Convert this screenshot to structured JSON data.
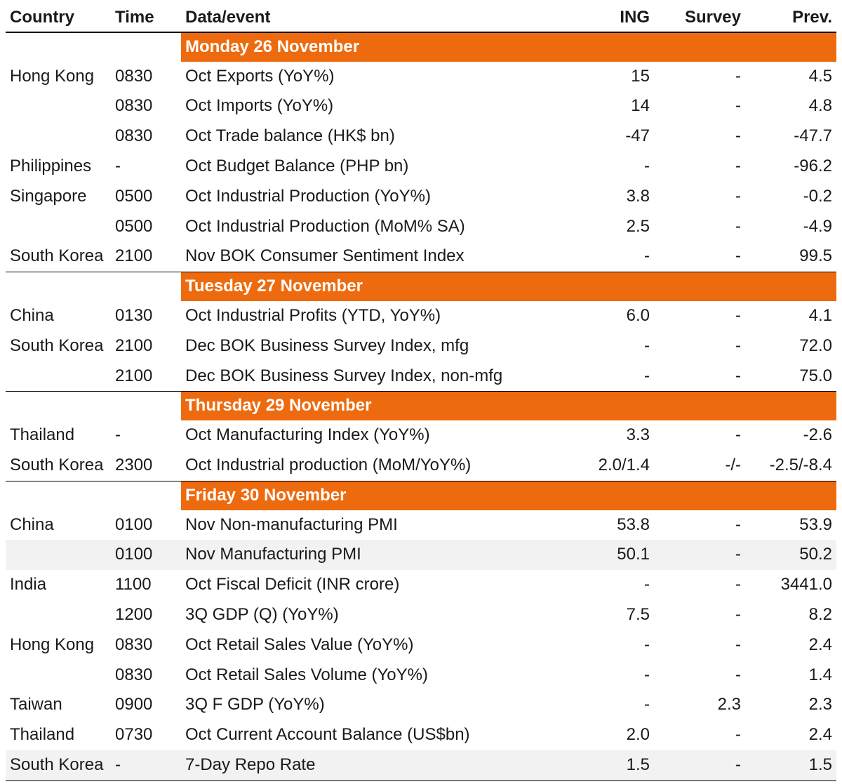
{
  "table": {
    "type": "table",
    "colors": {
      "header_bg": "#ed6b0e",
      "header_text": "#ffffff",
      "row_shade": "#f2f2f2",
      "border": "#000000",
      "text": "#1a1a1a",
      "background": "#ffffff"
    },
    "typography": {
      "fontsize_pt": 18,
      "header_weight": 700,
      "body_weight": 400
    },
    "columns": [
      {
        "key": "country",
        "label": "Country",
        "align": "left"
      },
      {
        "key": "time",
        "label": "Time",
        "align": "left"
      },
      {
        "key": "event",
        "label": "Data/event",
        "align": "left"
      },
      {
        "key": "ing",
        "label": "ING",
        "align": "right"
      },
      {
        "key": "survey",
        "label": "Survey",
        "align": "right"
      },
      {
        "key": "prev",
        "label": "Prev.",
        "align": "right"
      }
    ],
    "sections": [
      {
        "title": "Monday 26 November",
        "rows": [
          {
            "country": "Hong Kong",
            "time": "0830",
            "event": "Oct Exports (YoY%)",
            "ing": "15",
            "survey": "-",
            "prev": "4.5"
          },
          {
            "country": "",
            "time": "0830",
            "event": "Oct Imports (YoY%)",
            "ing": "14",
            "survey": "-",
            "prev": "4.8"
          },
          {
            "country": "",
            "time": "0830",
            "event": "Oct Trade balance (HK$ bn)",
            "ing": "-47",
            "survey": "-",
            "prev": "-47.7"
          },
          {
            "country": "Philippines",
            "time": "-",
            "event": "Oct Budget Balance (PHP bn)",
            "ing": "-",
            "survey": "-",
            "prev": "-96.2"
          },
          {
            "country": "Singapore",
            "time": "0500",
            "event": "Oct Industrial Production (YoY%)",
            "ing": "3.8",
            "survey": "-",
            "prev": "-0.2"
          },
          {
            "country": "",
            "time": "0500",
            "event": "Oct Industrial Production (MoM% SA)",
            "ing": "2.5",
            "survey": "-",
            "prev": "-4.9"
          },
          {
            "country": "South Korea",
            "time": "2100",
            "event": "Nov BOK Consumer Sentiment Index",
            "ing": "-",
            "survey": "-",
            "prev": "99.5"
          }
        ]
      },
      {
        "title": "Tuesday 27 November",
        "rows": [
          {
            "country": "China",
            "time": "0130",
            "event": "Oct Industrial Profits (YTD, YoY%)",
            "ing": "6.0",
            "survey": "-",
            "prev": "4.1"
          },
          {
            "country": "South Korea",
            "time": "2100",
            "event": "Dec BOK Business Survey Index, mfg",
            "ing": "-",
            "survey": "-",
            "prev": "72.0"
          },
          {
            "country": "",
            "time": "2100",
            "event": "Dec BOK Business Survey Index, non-mfg",
            "ing": "-",
            "survey": "-",
            "prev": "75.0"
          }
        ]
      },
      {
        "title": "Thursday 29 November",
        "rows": [
          {
            "country": "Thailand",
            "time": "-",
            "event": "Oct Manufacturing Index (YoY%)",
            "ing": "3.3",
            "survey": "-",
            "prev": "-2.6"
          },
          {
            "country": "South Korea",
            "time": "2300",
            "event": "Oct Industrial production (MoM/YoY%)",
            "ing": "2.0/1.4",
            "survey": "-/-",
            "prev": "-2.5/-8.4",
            "prev_clipped": true
          }
        ]
      },
      {
        "title": "Friday 30 November",
        "rows": [
          {
            "country": "China",
            "time": "0100",
            "event": "Nov Non-manufacturing PMI",
            "ing": "53.8",
            "survey": "-",
            "prev": "53.9"
          },
          {
            "country": "",
            "time": "0100",
            "event": "Nov Manufacturing PMI",
            "ing": "50.1",
            "survey": "-",
            "prev": "50.2",
            "shade": true
          },
          {
            "country": "India",
            "time": "1100",
            "event": "Oct Fiscal Deficit (INR crore)",
            "ing": "-",
            "survey": "-",
            "prev": "3441.0"
          },
          {
            "country": "",
            "time": "1200",
            "event": "3Q GDP (Q) (YoY%)",
            "ing": "7.5",
            "survey": "-",
            "prev": "8.2"
          },
          {
            "country": "Hong Kong",
            "time": "0830",
            "event": "Oct Retail Sales Value (YoY%)",
            "ing": "-",
            "survey": "-",
            "prev": "2.4"
          },
          {
            "country": "",
            "time": "0830",
            "event": "Oct Retail Sales Volume (YoY%)",
            "ing": "-",
            "survey": "-",
            "prev": "1.4"
          },
          {
            "country": "Taiwan",
            "time": "0900",
            "event": "3Q F GDP (YoY%)",
            "ing": "-",
            "survey": "2.3",
            "prev": "2.3"
          },
          {
            "country": "Thailand",
            "time": "0730",
            "event": "Oct Current Account Balance (US$bn)",
            "ing": "2.0",
            "survey": "-",
            "prev": "2.4"
          },
          {
            "country": "South Korea",
            "time": "-",
            "event": "7-Day Repo Rate",
            "ing": "1.5",
            "survey": "-",
            "prev": "1.5",
            "shade": true
          }
        ]
      }
    ]
  }
}
